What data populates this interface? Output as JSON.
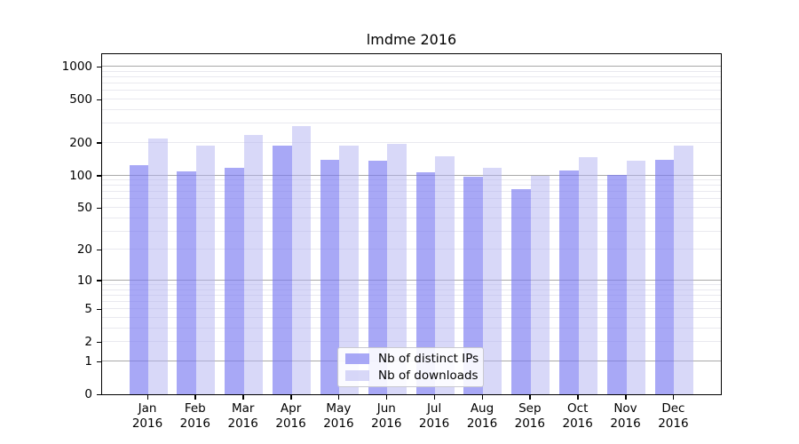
{
  "title": "lmdme 2016",
  "chart_data": {
    "type": "bar",
    "title": "lmdme 2016",
    "categories": [
      "Jan",
      "Feb",
      "Mar",
      "Apr",
      "May",
      "Jun",
      "Jul",
      "Aug",
      "Sep",
      "Oct",
      "Nov",
      "Dec"
    ],
    "year_label": "2016",
    "series": [
      {
        "name": "Nb of distinct IPs",
        "fill": "rgba(121,121,241,0.65)",
        "approx_hex": "#a8a8f4",
        "values": [
          125,
          108,
          117,
          190,
          140,
          136,
          107,
          98,
          75,
          111,
          102,
          139
        ]
      },
      {
        "name": "Nb of downloads",
        "fill": "rgba(177,177,241,0.5)",
        "approx_hex": "#d8d8f8",
        "values": [
          218,
          190,
          238,
          284,
          187,
          196,
          149,
          118,
          100,
          148,
          136,
          187
        ]
      }
    ],
    "yscale": "log1p",
    "yticks": [
      0,
      1,
      2,
      5,
      10,
      20,
      50,
      100,
      200,
      500,
      1000
    ],
    "ylim": [
      0,
      1300
    ],
    "xlabel": "",
    "ylabel": "",
    "grid": "major at powers of 10, minor at 2-9 per decade",
    "grid_colors": {
      "major": "#a9a9a9",
      "minor": "#e9e9ef"
    },
    "legend_position": "lower center inside plot"
  },
  "legend": {
    "items": [
      {
        "label": "Nb of distinct IPs"
      },
      {
        "label": "Nb of downloads"
      }
    ]
  }
}
